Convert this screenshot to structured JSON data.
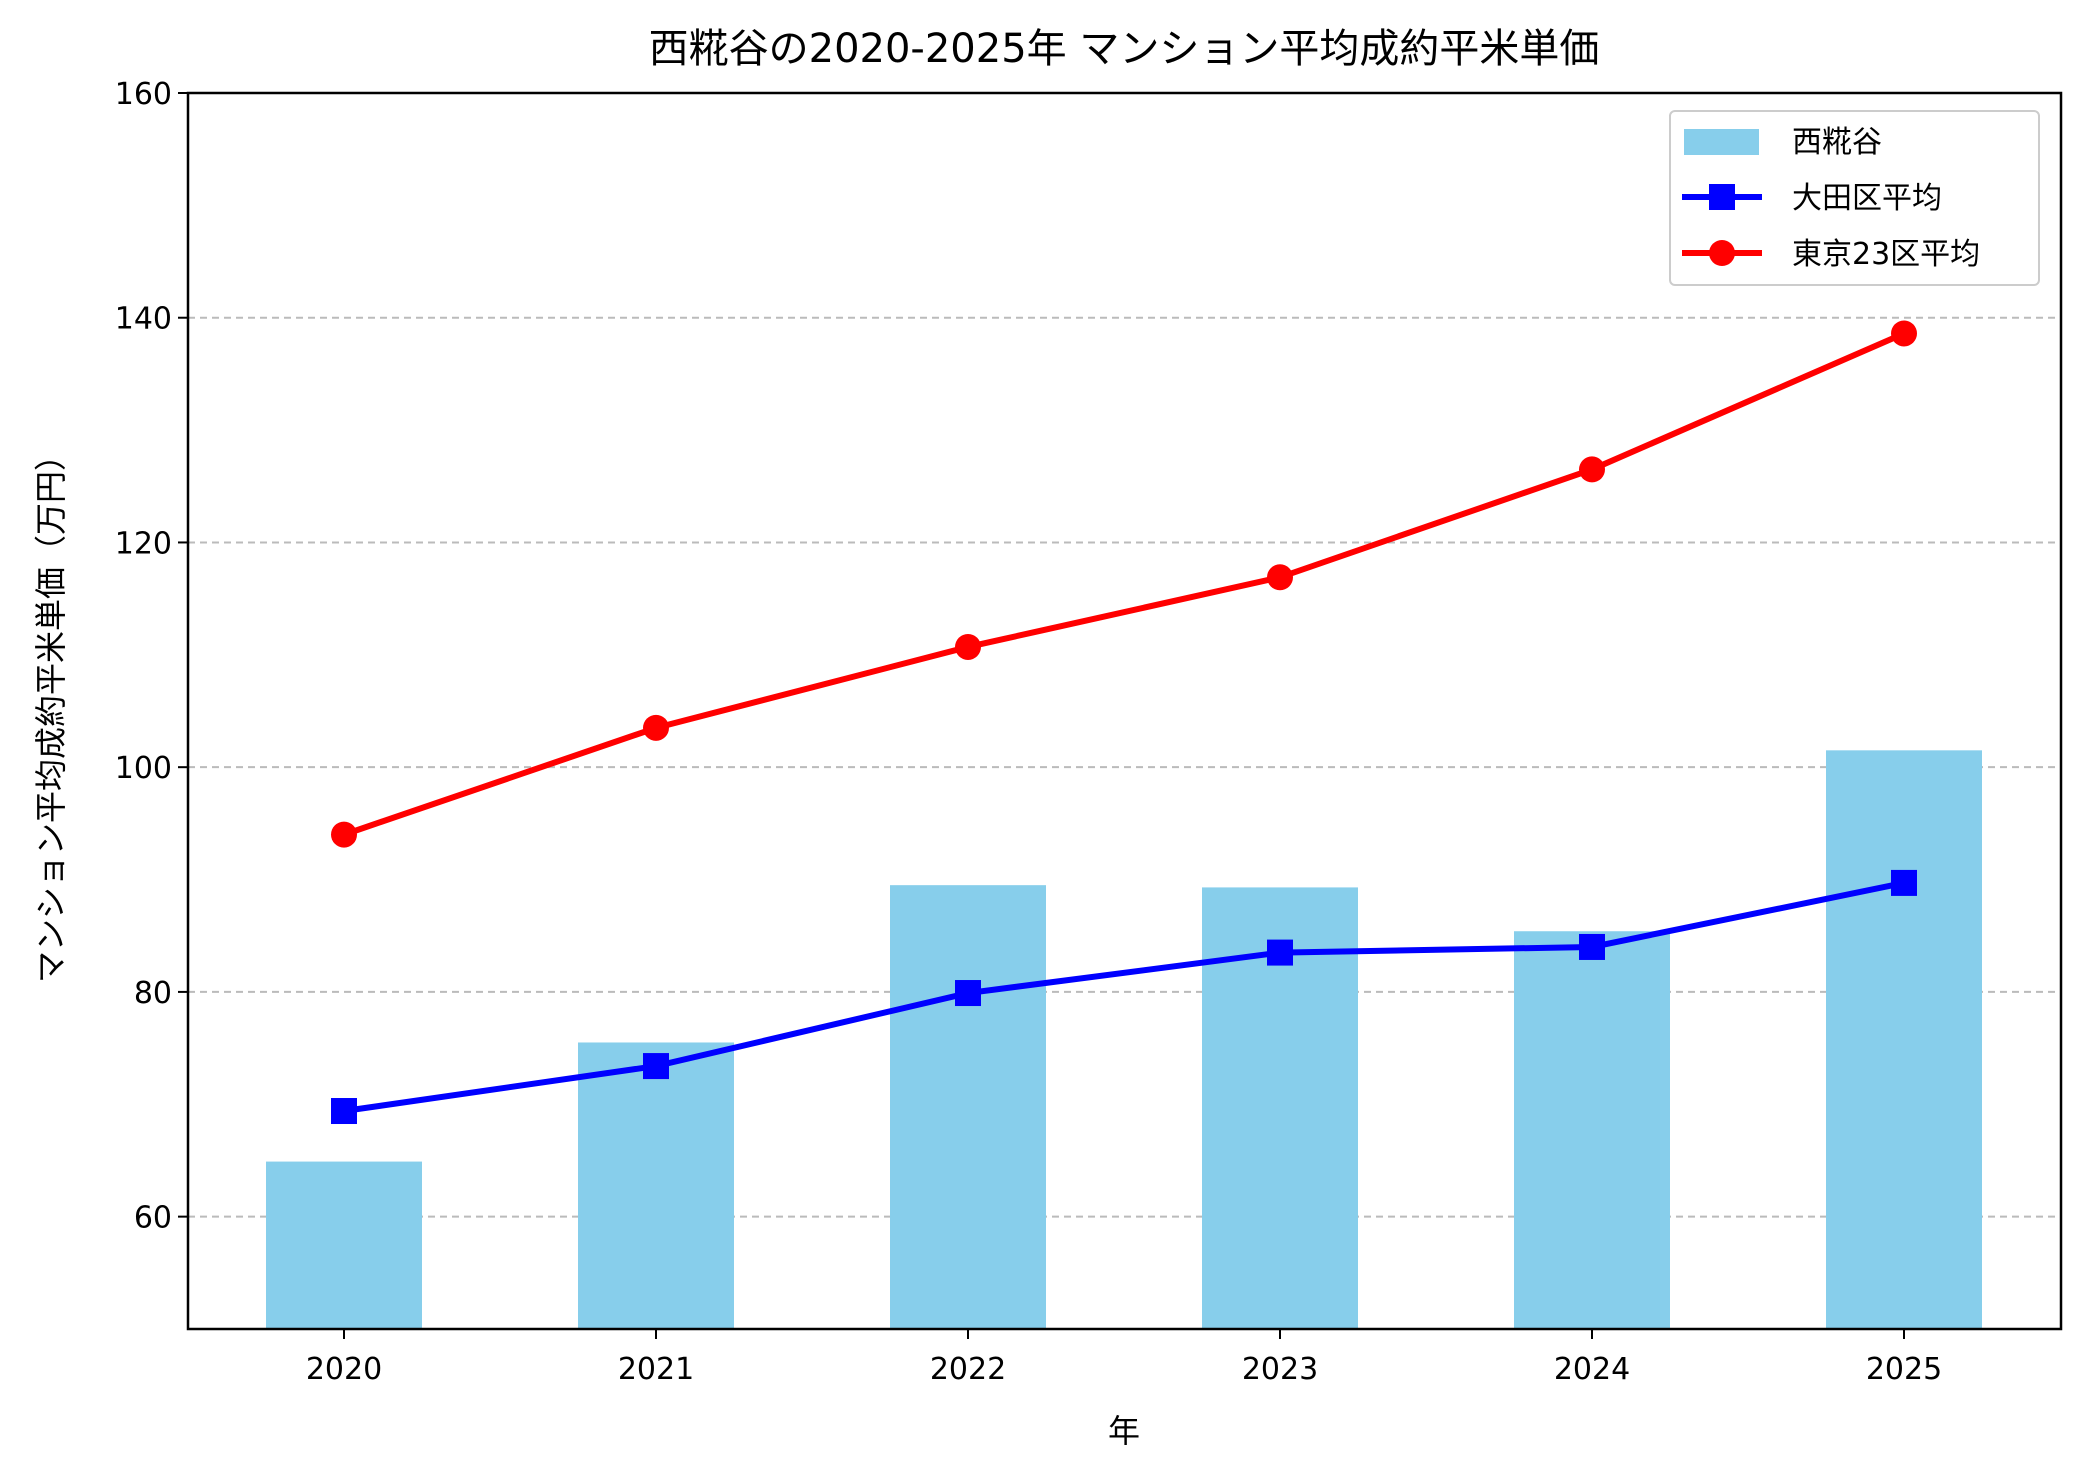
{
  "chart_data": {
    "type": "bar+line",
    "title": "西糀谷の2020-2025年 マンション平均成約平米単価",
    "xlabel": "年",
    "ylabel": "マンション平均成約平米単価（万円）",
    "categories": [
      "2020",
      "2021",
      "2022",
      "2023",
      "2024",
      "2025"
    ],
    "ylim": [
      50,
      160
    ],
    "yticks": [
      "60",
      "80",
      "100",
      "120",
      "140",
      "160"
    ],
    "grid": "y-dashed",
    "legend_position": "top-right",
    "series": [
      {
        "name": "西糀谷",
        "kind": "bar",
        "color": "#87CEEB",
        "values": [
          64.9,
          75.5,
          89.5,
          89.3,
          85.4,
          101.5
        ]
      },
      {
        "name": "大田区平均",
        "kind": "line",
        "marker": "square",
        "color": "#0000FF",
        "values": [
          69.4,
          73.4,
          79.9,
          83.5,
          84.0,
          89.7
        ]
      },
      {
        "name": "東京23区平均",
        "kind": "line",
        "marker": "circle",
        "color": "#FF0000",
        "values": [
          94.0,
          103.5,
          110.7,
          116.9,
          126.5,
          138.6
        ]
      }
    ]
  }
}
